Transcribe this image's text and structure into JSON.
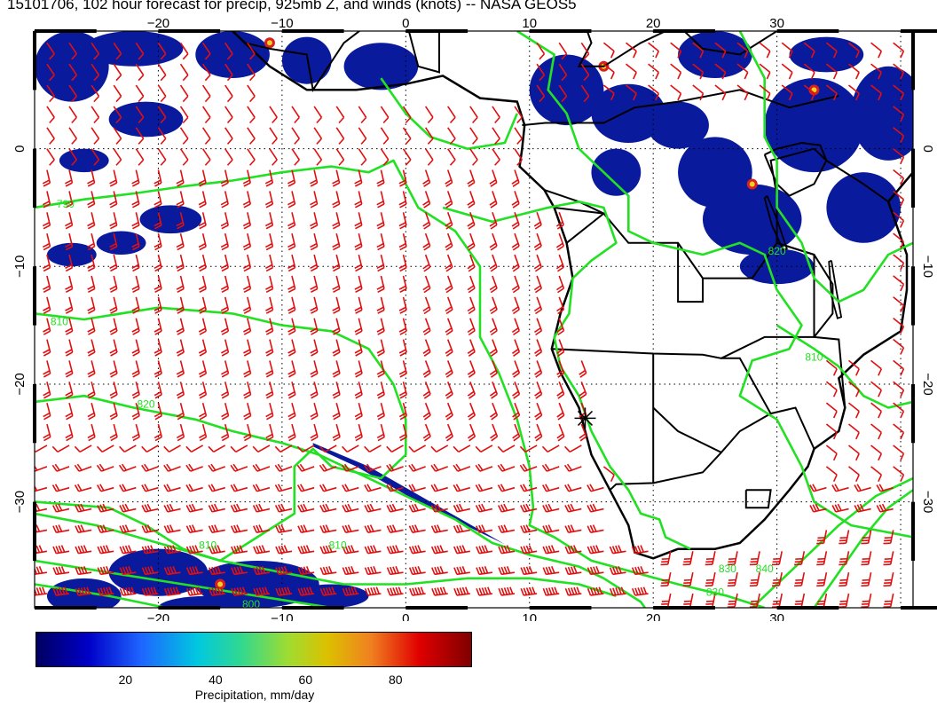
{
  "title": "15101706, 102 hour forecast for precip, 925mb Z, and winds (knots) -- NASA GEOS5",
  "map": {
    "lon_range": [
      -30,
      41
    ],
    "lat_range": [
      -39,
      10
    ],
    "x_ticks": [
      -20,
      -10,
      0,
      10,
      20,
      30
    ],
    "x_tick_labels": [
      "−20",
      "−10",
      "0",
      "10",
      "20",
      "30"
    ],
    "y_ticks": [
      0,
      -10,
      -20,
      -30
    ],
    "y_tick_labels": [
      "0",
      "−10",
      "−20",
      "−30"
    ],
    "grid": true,
    "layers": [
      "precipitation-shading",
      "925mb-height-contours",
      "wind-barbs",
      "coastlines-borders"
    ],
    "colors": {
      "contour": "#22e022",
      "barb": "#e01010",
      "land": "#000000"
    },
    "contour_labels": [
      {
        "text": "790",
        "lon": -27.5,
        "lat": -5
      },
      {
        "text": "810",
        "lon": -28,
        "lat": -15
      },
      {
        "text": "820",
        "lon": -21,
        "lat": -22
      },
      {
        "text": "810",
        "lon": -5.5,
        "lat": -34
      },
      {
        "text": "830",
        "lon": 25,
        "lat": -38
      },
      {
        "text": "810",
        "lon": -16,
        "lat": -34
      },
      {
        "text": "800",
        "lon": -12.5,
        "lat": -39
      },
      {
        "text": "830",
        "lon": 26,
        "lat": -36
      },
      {
        "text": "840",
        "lon": 29,
        "lat": -36
      },
      {
        "text": "810",
        "lon": 33,
        "lat": -18
      },
      {
        "text": "820",
        "lon": 30,
        "lat": -9
      }
    ],
    "marker": {
      "symbol": "star",
      "lon": 14.5,
      "lat": -22.9
    }
  },
  "colorbar": {
    "range": [
      0,
      97
    ],
    "ticks": [
      20,
      40,
      60,
      80
    ],
    "labels": [
      "20",
      "40",
      "60",
      "80"
    ],
    "title": "Precipitation, mm/day",
    "colormap": [
      "#000060",
      "#0000c8",
      "#1e64ff",
      "#00c8e0",
      "#30d890",
      "#a0dc30",
      "#dcc000",
      "#f08020",
      "#e00000",
      "#800000"
    ]
  }
}
